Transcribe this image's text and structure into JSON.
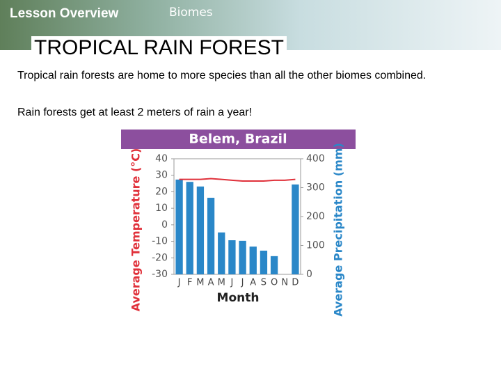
{
  "header": {
    "title": "Lesson Overview",
    "subtitle": "Biomes"
  },
  "heading": "TROPICAL RAIN FOREST",
  "paragraphs": [
    "Tropical rain forests are home to more species than all the other biomes combined.",
    "Rain forests get at least 2 meters of rain a year!"
  ],
  "chart_data": {
    "type": "bar",
    "title": "Belem, Brazil",
    "x_label": "Month",
    "y_label": "Average Temperature (°C)",
    "y2_label": "Average Precipitation (mm)",
    "categories": [
      "J",
      "F",
      "M",
      "A",
      "M",
      "J",
      "J",
      "A",
      "S",
      "O",
      "N",
      "D"
    ],
    "ylim": [
      -30,
      40
    ],
    "yticks": [
      -30,
      -20,
      -10,
      0,
      10,
      20,
      30,
      40
    ],
    "y2lim": [
      0,
      400
    ],
    "y2ticks": [
      0,
      100,
      200,
      300,
      400
    ],
    "series": [
      {
        "name": "Precipitation",
        "type": "bar",
        "axis": "y2",
        "color": "#2a87c8",
        "values": [
          328,
          320,
          304,
          265,
          145,
          118,
          116,
          96,
          82,
          63,
          0,
          311
        ]
      },
      {
        "name": "Temperature",
        "type": "line",
        "axis": "y",
        "color": "#e0303a",
        "values": [
          27.5,
          27.5,
          27.5,
          28,
          27.5,
          27,
          26.5,
          26.5,
          26.5,
          27,
          27,
          27.5
        ]
      }
    ]
  }
}
